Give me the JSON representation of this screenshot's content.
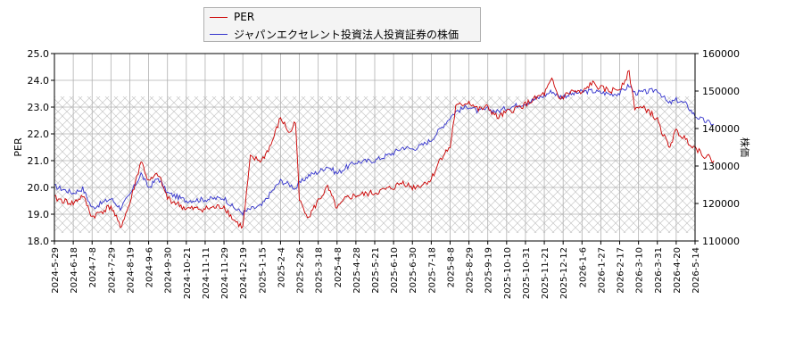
{
  "chart_data": {
    "type": "line",
    "legend_position": "top-left",
    "grid": true,
    "hatched_band": [
      18.3,
      23.4
    ],
    "colors": {
      "per": "#cc0000",
      "stock": "#3333cc",
      "grid": "#b0b0b0",
      "hatch": "#c8c8c8"
    },
    "ylabel_left": "PER",
    "ylabel_right": "株価",
    "ylim_left": [
      18.0,
      25.0
    ],
    "ylim_right": [
      110000,
      160000
    ],
    "yticks_left": [
      "18.0",
      "19.0",
      "20.0",
      "21.0",
      "22.0",
      "23.0",
      "24.0",
      "25.0"
    ],
    "yticks_right": [
      "110000",
      "120000",
      "130000",
      "140000",
      "150000",
      "160000"
    ],
    "x_tick_labels": [
      "2024-5-29",
      "2024-6-18",
      "2024-7-8",
      "2024-7-29",
      "2024-8-19",
      "2024-9-6",
      "2024-9-30",
      "2024-10-21",
      "2024-11-11",
      "2024-11-29",
      "2024-12-19",
      "2025-1-15",
      "2025-2-4",
      "2025-2-26",
      "2025-3-18",
      "2025-4-8",
      "2025-4-28",
      "2025-5-21",
      "2025-6-10",
      "2025-6-30",
      "2025-7-18",
      "2025-8-8",
      "2025-8-29",
      "2025-9-19",
      "2025-10-10",
      "2025-10-31",
      "2025-11-21",
      "2025-12-12",
      "2026-1-6",
      "2026-1-27",
      "2026-2-17",
      "2026-3-10",
      "2026-3-31",
      "2026-4-20",
      "2026-5-14"
    ],
    "series": [
      {
        "name": "PER",
        "axis": "left",
        "anchors": [
          [
            0,
            19.6
          ],
          [
            1,
            19.4
          ],
          [
            1.5,
            19.7
          ],
          [
            2,
            18.9
          ],
          [
            3,
            19.3
          ],
          [
            3.5,
            18.5
          ],
          [
            4,
            19.4
          ],
          [
            4.6,
            21.0
          ],
          [
            5,
            20.2
          ],
          [
            5.5,
            20.5
          ],
          [
            6,
            19.6
          ],
          [
            7,
            19.2
          ],
          [
            8,
            19.2
          ],
          [
            9,
            19.3
          ],
          [
            9.5,
            18.8
          ],
          [
            10,
            18.5
          ],
          [
            10.4,
            21.1
          ],
          [
            11,
            21.0
          ],
          [
            11.5,
            21.6
          ],
          [
            12,
            22.6
          ],
          [
            12.5,
            22.0
          ],
          [
            12.8,
            22.5
          ],
          [
            13,
            19.5
          ],
          [
            13.5,
            18.9
          ],
          [
            14,
            19.5
          ],
          [
            14.5,
            20.0
          ],
          [
            15,
            19.2
          ],
          [
            15.5,
            19.6
          ],
          [
            16,
            19.7
          ],
          [
            17,
            19.8
          ],
          [
            18,
            20.0
          ],
          [
            18.5,
            20.2
          ],
          [
            19,
            20.0
          ],
          [
            19.5,
            20.1
          ],
          [
            20,
            20.3
          ],
          [
            20.5,
            21.1
          ],
          [
            21,
            21.5
          ],
          [
            21.3,
            23.0
          ],
          [
            22,
            23.2
          ],
          [
            22.5,
            22.9
          ],
          [
            23,
            23.0
          ],
          [
            23.5,
            22.6
          ],
          [
            24,
            22.8
          ],
          [
            25,
            23.1
          ],
          [
            25.5,
            23.3
          ],
          [
            26,
            23.5
          ],
          [
            26.4,
            24.0
          ],
          [
            26.8,
            23.3
          ],
          [
            27.5,
            23.6
          ],
          [
            28,
            23.5
          ],
          [
            28.5,
            23.9
          ],
          [
            29,
            23.7
          ],
          [
            29.5,
            23.6
          ],
          [
            30,
            23.7
          ],
          [
            30.5,
            24.3
          ],
          [
            30.8,
            23.0
          ],
          [
            31.5,
            22.9
          ],
          [
            32,
            22.5
          ],
          [
            32.6,
            21.5
          ],
          [
            33,
            22.1
          ],
          [
            33.5,
            21.8
          ],
          [
            34,
            21.5
          ],
          [
            34.5,
            21.2
          ],
          [
            35,
            21.0
          ]
        ]
      },
      {
        "name": "ジャパンエクセレント投資法人投資証券の株価",
        "axis": "right",
        "anchors": [
          [
            0,
            124600
          ],
          [
            1,
            122800
          ],
          [
            1.5,
            124000
          ],
          [
            2,
            118800
          ],
          [
            3,
            121300
          ],
          [
            3.5,
            118800
          ],
          [
            4,
            122200
          ],
          [
            4.6,
            128000
          ],
          [
            5,
            124200
          ],
          [
            5.5,
            126800
          ],
          [
            6,
            122800
          ],
          [
            7,
            120800
          ],
          [
            8,
            121100
          ],
          [
            9,
            121500
          ],
          [
            9.5,
            118900
          ],
          [
            10,
            117500
          ],
          [
            10.4,
            118500
          ],
          [
            11,
            119400
          ],
          [
            11.5,
            123000
          ],
          [
            12,
            126000
          ],
          [
            12.5,
            125000
          ],
          [
            12.8,
            124000
          ],
          [
            13,
            125300
          ],
          [
            13.5,
            127500
          ],
          [
            14,
            128400
          ],
          [
            14.5,
            130000
          ],
          [
            15,
            128000
          ],
          [
            15.5,
            129700
          ],
          [
            16,
            131000
          ],
          [
            17,
            131500
          ],
          [
            18,
            133500
          ],
          [
            18.5,
            135000
          ],
          [
            19,
            134500
          ],
          [
            19.5,
            135500
          ],
          [
            20,
            137000
          ],
          [
            20.5,
            140000
          ],
          [
            21,
            143000
          ],
          [
            21.3,
            144500
          ],
          [
            22,
            146000
          ],
          [
            22.5,
            144500
          ],
          [
            23,
            145200
          ],
          [
            23.5,
            144500
          ],
          [
            24,
            145500
          ],
          [
            25,
            146800
          ],
          [
            25.5,
            147800
          ],
          [
            26,
            148800
          ],
          [
            26.4,
            150000
          ],
          [
            26.8,
            148500
          ],
          [
            27.5,
            149200
          ],
          [
            28,
            149800
          ],
          [
            28.5,
            150000
          ],
          [
            29,
            149600
          ],
          [
            29.5,
            149200
          ],
          [
            30,
            149400
          ],
          [
            30.5,
            151500
          ],
          [
            30.8,
            149500
          ],
          [
            31.5,
            149800
          ],
          [
            32,
            150400
          ],
          [
            32.6,
            146600
          ],
          [
            33,
            147600
          ],
          [
            33.5,
            146600
          ],
          [
            34,
            143400
          ],
          [
            34.5,
            142000
          ],
          [
            35,
            141200
          ]
        ]
      }
    ]
  }
}
